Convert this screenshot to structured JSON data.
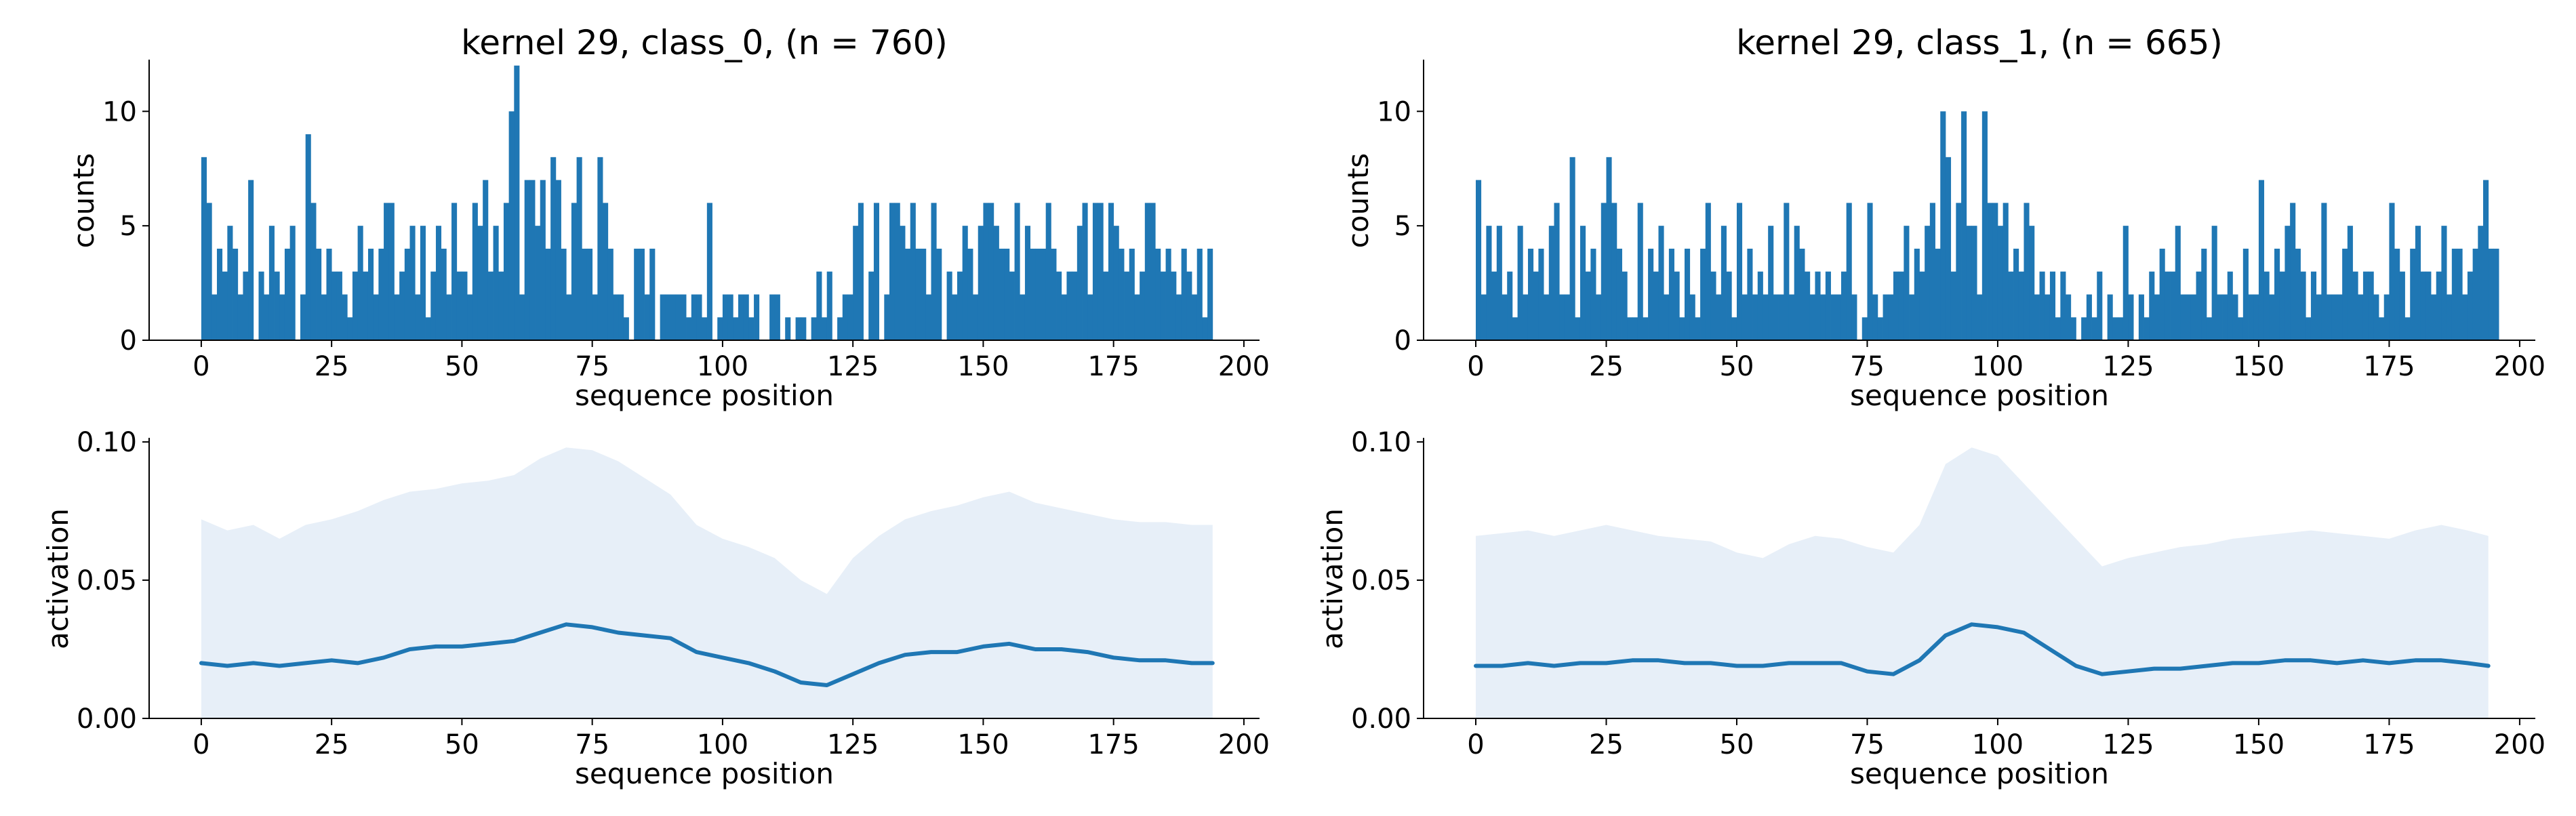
{
  "figure": {
    "style": {
      "bar_color": "#1f77b4",
      "line_color": "#1f77b4",
      "band_color": "#e7eff8",
      "axis_color": "#000000"
    }
  },
  "chart_data": [
    {
      "type": "bar",
      "title": "kernel 29, class_0, (n = 760)",
      "xlabel": "sequence position",
      "ylabel": "counts",
      "xlim": [
        -10,
        203
      ],
      "ylim": [
        0,
        12.2
      ],
      "xticks": [
        0,
        25,
        50,
        75,
        100,
        125,
        150,
        175,
        200
      ],
      "yticks": [
        0,
        5,
        10
      ],
      "x_start": 0,
      "values": [
        8,
        6,
        2,
        4,
        3,
        5,
        4,
        2,
        3,
        7,
        0,
        3,
        2,
        5,
        3,
        2,
        4,
        5,
        0,
        2,
        9,
        6,
        4,
        2,
        4,
        3,
        3,
        2,
        1,
        3,
        5,
        3,
        4,
        2,
        4,
        6,
        6,
        2,
        3,
        4,
        5,
        2,
        5,
        1,
        3,
        5,
        4,
        2,
        6,
        3,
        3,
        2,
        6,
        5,
        7,
        3,
        5,
        3,
        6,
        10,
        12,
        2,
        7,
        7,
        5,
        7,
        4,
        8,
        7,
        4,
        2,
        6,
        8,
        4,
        4,
        2,
        8,
        6,
        4,
        2,
        2,
        1,
        0,
        4,
        4,
        2,
        4,
        0,
        2,
        2,
        2,
        2,
        2,
        1,
        2,
        2,
        1,
        6,
        0,
        1,
        2,
        2,
        1,
        2,
        2,
        1,
        2,
        0,
        0,
        2,
        2,
        0,
        1,
        0,
        1,
        1,
        0,
        1,
        3,
        1,
        3,
        0,
        1,
        2,
        2,
        5,
        6,
        0,
        3,
        6,
        0,
        2,
        6,
        6,
        5,
        4,
        6,
        4,
        4,
        2,
        6,
        4,
        0,
        3,
        2,
        3,
        5,
        4,
        2,
        5,
        6,
        6,
        5,
        4,
        4,
        3,
        6,
        2,
        5,
        4,
        4,
        4,
        6,
        4,
        3,
        2,
        3,
        3,
        5,
        6,
        2,
        6,
        6,
        3,
        6,
        5,
        4,
        3,
        4,
        2,
        3,
        6,
        6,
        4,
        3,
        4,
        3,
        2,
        4,
        3,
        2,
        4,
        1,
        4
      ]
    },
    {
      "type": "bar",
      "title": "kernel 29, class_1, (n = 665)",
      "xlabel": "sequence position",
      "ylabel": "counts",
      "xlim": [
        -10,
        203
      ],
      "ylim": [
        0,
        12.2
      ],
      "xticks": [
        0,
        25,
        50,
        75,
        100,
        125,
        150,
        175,
        200
      ],
      "yticks": [
        0,
        5,
        10
      ],
      "x_start": 0,
      "values": [
        7,
        2,
        5,
        3,
        5,
        2,
        3,
        1,
        5,
        2,
        4,
        3,
        4,
        2,
        5,
        6,
        2,
        2,
        8,
        1,
        5,
        3,
        4,
        2,
        6,
        8,
        6,
        4,
        3,
        1,
        1,
        6,
        1,
        4,
        3,
        5,
        2,
        4,
        3,
        1,
        4,
        2,
        1,
        4,
        6,
        3,
        2,
        5,
        3,
        1,
        6,
        2,
        4,
        2,
        3,
        2,
        5,
        2,
        2,
        6,
        2,
        5,
        4,
        3,
        2,
        3,
        2,
        3,
        2,
        2,
        3,
        6,
        2,
        0,
        1,
        6,
        2,
        1,
        2,
        2,
        3,
        3,
        5,
        2,
        4,
        3,
        5,
        6,
        4,
        10,
        8,
        3,
        6,
        10,
        5,
        5,
        2,
        10,
        6,
        6,
        5,
        6,
        3,
        4,
        3,
        6,
        5,
        2,
        3,
        2,
        3,
        1,
        3,
        2,
        1,
        0,
        1,
        2,
        1,
        3,
        0,
        2,
        1,
        1,
        5,
        2,
        0,
        2,
        1,
        3,
        2,
        4,
        3,
        3,
        5,
        2,
        2,
        2,
        3,
        4,
        1,
        5,
        2,
        2,
        3,
        2,
        1,
        4,
        2,
        2,
        7,
        3,
        2,
        4,
        3,
        5,
        6,
        4,
        3,
        1,
        3,
        2,
        6,
        2,
        2,
        2,
        4,
        5,
        3,
        2,
        3,
        3,
        2,
        1,
        2,
        6,
        4,
        3,
        1,
        4,
        5,
        3,
        3,
        2,
        3,
        5,
        2,
        4,
        4,
        2,
        3,
        4,
        5,
        7,
        4,
        4
      ]
    },
    {
      "type": "area",
      "title": "",
      "xlabel": "sequence position",
      "ylabel": "activation",
      "xlim": [
        -10,
        203
      ],
      "ylim": [
        0,
        0.101
      ],
      "xticks": [
        0,
        25,
        50,
        75,
        100,
        125,
        150,
        175,
        200
      ],
      "yticks": [
        "0.00",
        "0.05",
        "0.10"
      ],
      "x": [
        0,
        5,
        10,
        15,
        20,
        25,
        30,
        35,
        40,
        45,
        50,
        55,
        60,
        65,
        70,
        75,
        80,
        85,
        90,
        95,
        100,
        105,
        110,
        115,
        120,
        125,
        130,
        135,
        140,
        145,
        150,
        155,
        160,
        165,
        170,
        175,
        180,
        185,
        190,
        194
      ],
      "mean": [
        0.02,
        0.019,
        0.02,
        0.019,
        0.02,
        0.021,
        0.02,
        0.022,
        0.025,
        0.026,
        0.026,
        0.027,
        0.028,
        0.031,
        0.034,
        0.033,
        0.031,
        0.03,
        0.029,
        0.024,
        0.022,
        0.02,
        0.017,
        0.013,
        0.012,
        0.016,
        0.02,
        0.023,
        0.024,
        0.024,
        0.026,
        0.027,
        0.025,
        0.025,
        0.024,
        0.022,
        0.021,
        0.021,
        0.02,
        0.02
      ],
      "upper": [
        0.072,
        0.068,
        0.07,
        0.065,
        0.07,
        0.072,
        0.075,
        0.079,
        0.082,
        0.083,
        0.085,
        0.086,
        0.088,
        0.094,
        0.098,
        0.097,
        0.093,
        0.087,
        0.081,
        0.07,
        0.065,
        0.062,
        0.058,
        0.05,
        0.045,
        0.058,
        0.066,
        0.072,
        0.075,
        0.077,
        0.08,
        0.082,
        0.078,
        0.076,
        0.074,
        0.072,
        0.071,
        0.071,
        0.07,
        0.07
      ]
    },
    {
      "type": "area",
      "title": "",
      "xlabel": "sequence position",
      "ylabel": "activation",
      "xlim": [
        -10,
        203
      ],
      "ylim": [
        0,
        0.101
      ],
      "xticks": [
        0,
        25,
        50,
        75,
        100,
        125,
        150,
        175,
        200
      ],
      "yticks": [
        "0.00",
        "0.05",
        "0.10"
      ],
      "x": [
        0,
        5,
        10,
        15,
        20,
        25,
        30,
        35,
        40,
        45,
        50,
        55,
        60,
        65,
        70,
        75,
        80,
        85,
        90,
        95,
        100,
        105,
        110,
        115,
        120,
        125,
        130,
        135,
        140,
        145,
        150,
        155,
        160,
        165,
        170,
        175,
        180,
        185,
        190,
        194
      ],
      "mean": [
        0.019,
        0.019,
        0.02,
        0.019,
        0.02,
        0.02,
        0.021,
        0.021,
        0.02,
        0.02,
        0.019,
        0.019,
        0.02,
        0.02,
        0.02,
        0.017,
        0.016,
        0.021,
        0.03,
        0.034,
        0.033,
        0.031,
        0.025,
        0.019,
        0.016,
        0.017,
        0.018,
        0.018,
        0.019,
        0.02,
        0.02,
        0.021,
        0.021,
        0.02,
        0.021,
        0.02,
        0.021,
        0.021,
        0.02,
        0.019
      ],
      "upper": [
        0.066,
        0.067,
        0.068,
        0.066,
        0.068,
        0.07,
        0.068,
        0.066,
        0.065,
        0.064,
        0.06,
        0.058,
        0.063,
        0.066,
        0.065,
        0.062,
        0.06,
        0.07,
        0.092,
        0.098,
        0.095,
        0.085,
        0.075,
        0.065,
        0.055,
        0.058,
        0.06,
        0.062,
        0.063,
        0.065,
        0.066,
        0.067,
        0.068,
        0.067,
        0.066,
        0.065,
        0.068,
        0.07,
        0.068,
        0.066
      ]
    }
  ]
}
